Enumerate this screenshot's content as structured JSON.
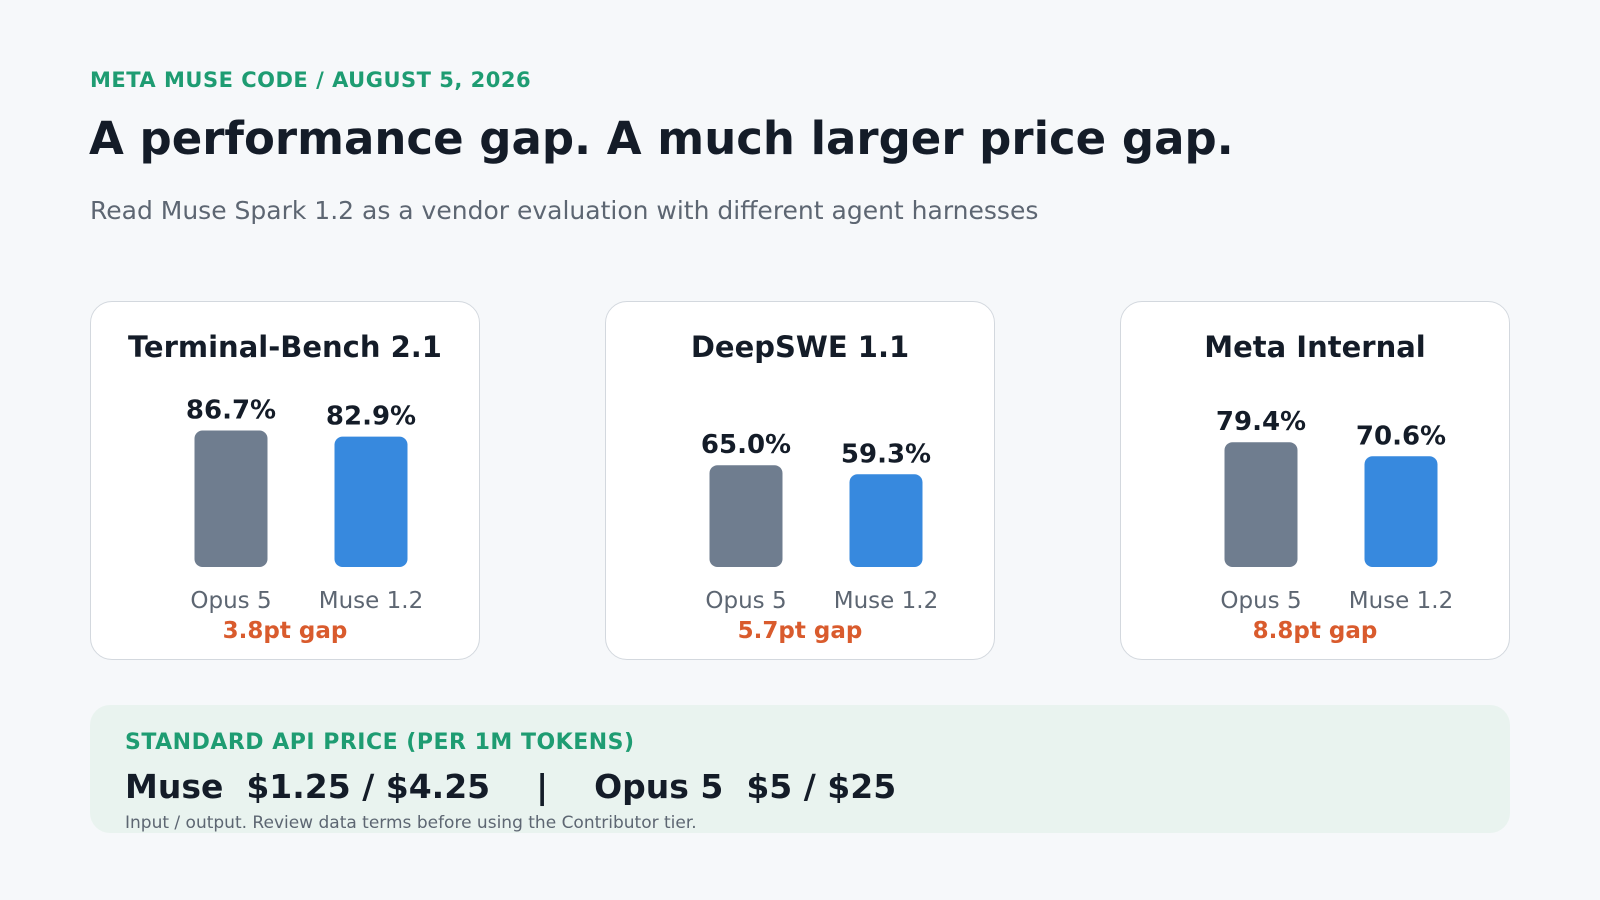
{
  "header": {
    "eyebrow": "META MUSE CODE / AUGUST 5, 2026",
    "title": "A performance gap. A much larger price gap.",
    "subtitle": "Read Muse Spark 1.2 as a vendor evaluation with different agent harnesses"
  },
  "colors": {
    "opus": "#6f7d8f",
    "muse": "#3789de",
    "gap": "#d95b2d",
    "accent": "#1e9c72"
  },
  "chart_data": [
    {
      "type": "bar",
      "title": "Terminal-Bench 2.1",
      "categories": [
        "Opus 5",
        "Muse 1.2"
      ],
      "values": [
        86.7,
        82.9
      ],
      "value_labels": [
        "86.7%",
        "82.9%"
      ],
      "annotation": "3.8pt gap",
      "ylim": [
        0,
        100
      ]
    },
    {
      "type": "bar",
      "title": "DeepSWE 1.1",
      "categories": [
        "Opus 5",
        "Muse 1.2"
      ],
      "values": [
        65.0,
        59.3
      ],
      "value_labels": [
        "65.0%",
        "59.3%"
      ],
      "annotation": "5.7pt gap",
      "ylim": [
        0,
        100
      ]
    },
    {
      "type": "bar",
      "title": "Meta Internal",
      "categories": [
        "Opus 5",
        "Muse 1.2"
      ],
      "values": [
        79.4,
        70.6
      ],
      "value_labels": [
        "79.4%",
        "70.6%"
      ],
      "annotation": "8.8pt gap",
      "ylim": [
        0,
        100
      ]
    }
  ],
  "pricing": {
    "heading": "STANDARD API PRICE (PER 1M TOKENS)",
    "line": "Muse  $1.25 / $4.25    |    Opus 5  $5 / $25",
    "note": "Input / output. Review data terms before using the Contributor tier."
  }
}
